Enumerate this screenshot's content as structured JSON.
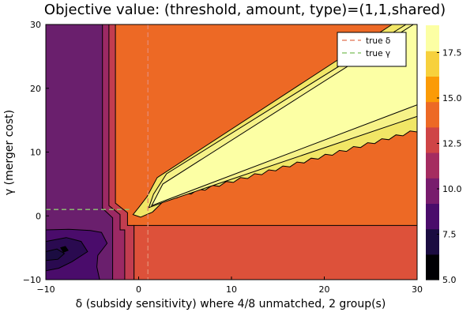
{
  "chart_data": {
    "type": "heatmap",
    "title": "Objective value: (threshold, amount, type)=(1,1,shared)",
    "xlabel": "δ (subsidy sensitivity) where 4/8 unmatched, 2 group(s)",
    "ylabel": "γ (merger cost)",
    "xlim": [
      -10,
      30
    ],
    "ylim": [
      -10,
      30
    ],
    "xticks": [
      "−10",
      "0",
      "10",
      "20",
      "30"
    ],
    "yticks": [
      "−10",
      "0",
      "10",
      "20",
      "30"
    ],
    "colorbar": {
      "min": 5.0,
      "max": 19.0,
      "tick_labels": [
        "5.0",
        "7.5",
        "10.0",
        "12.5",
        "15.0",
        "17.5"
      ],
      "colors": [
        "#000004",
        "#1b0c41",
        "#4a0c6b",
        "#781c6d",
        "#a52c60",
        "#cf4446",
        "#ed6925",
        "#fb9b06",
        "#f7d13d",
        "#fcffa4"
      ]
    },
    "reference_lines": [
      {
        "name": "true δ",
        "axis": "x",
        "value": 1,
        "color": "#e5886f"
      },
      {
        "name": "true γ",
        "axis": "y",
        "value": 1,
        "color": "#8fc873"
      }
    ],
    "legend": {
      "position": "top-right",
      "entries": [
        {
          "label": "true δ",
          "color": "#e5886f"
        },
        {
          "label": "true γ",
          "color": "#8fc873"
        }
      ]
    },
    "regions": [
      {
        "name": "left-band",
        "value": 10.2,
        "color": "#6a1f6d"
      },
      {
        "name": "bottom-right-block",
        "value": 13.2,
        "color": "#dd513a"
      },
      {
        "name": "upper-right-main",
        "value": 14.2,
        "color": "#ed6925"
      },
      {
        "name": "wedge-outer",
        "value": 17.2,
        "color": "#f1e666"
      },
      {
        "name": "wedge-inner",
        "value": 18.6,
        "color": "#fcffa4"
      },
      {
        "name": "bottom-left-dark",
        "value": 9.0,
        "color": "#4a0c6b"
      },
      {
        "name": "bottom-left-core",
        "value": 7.2,
        "color": "#1b0c41"
      }
    ]
  }
}
